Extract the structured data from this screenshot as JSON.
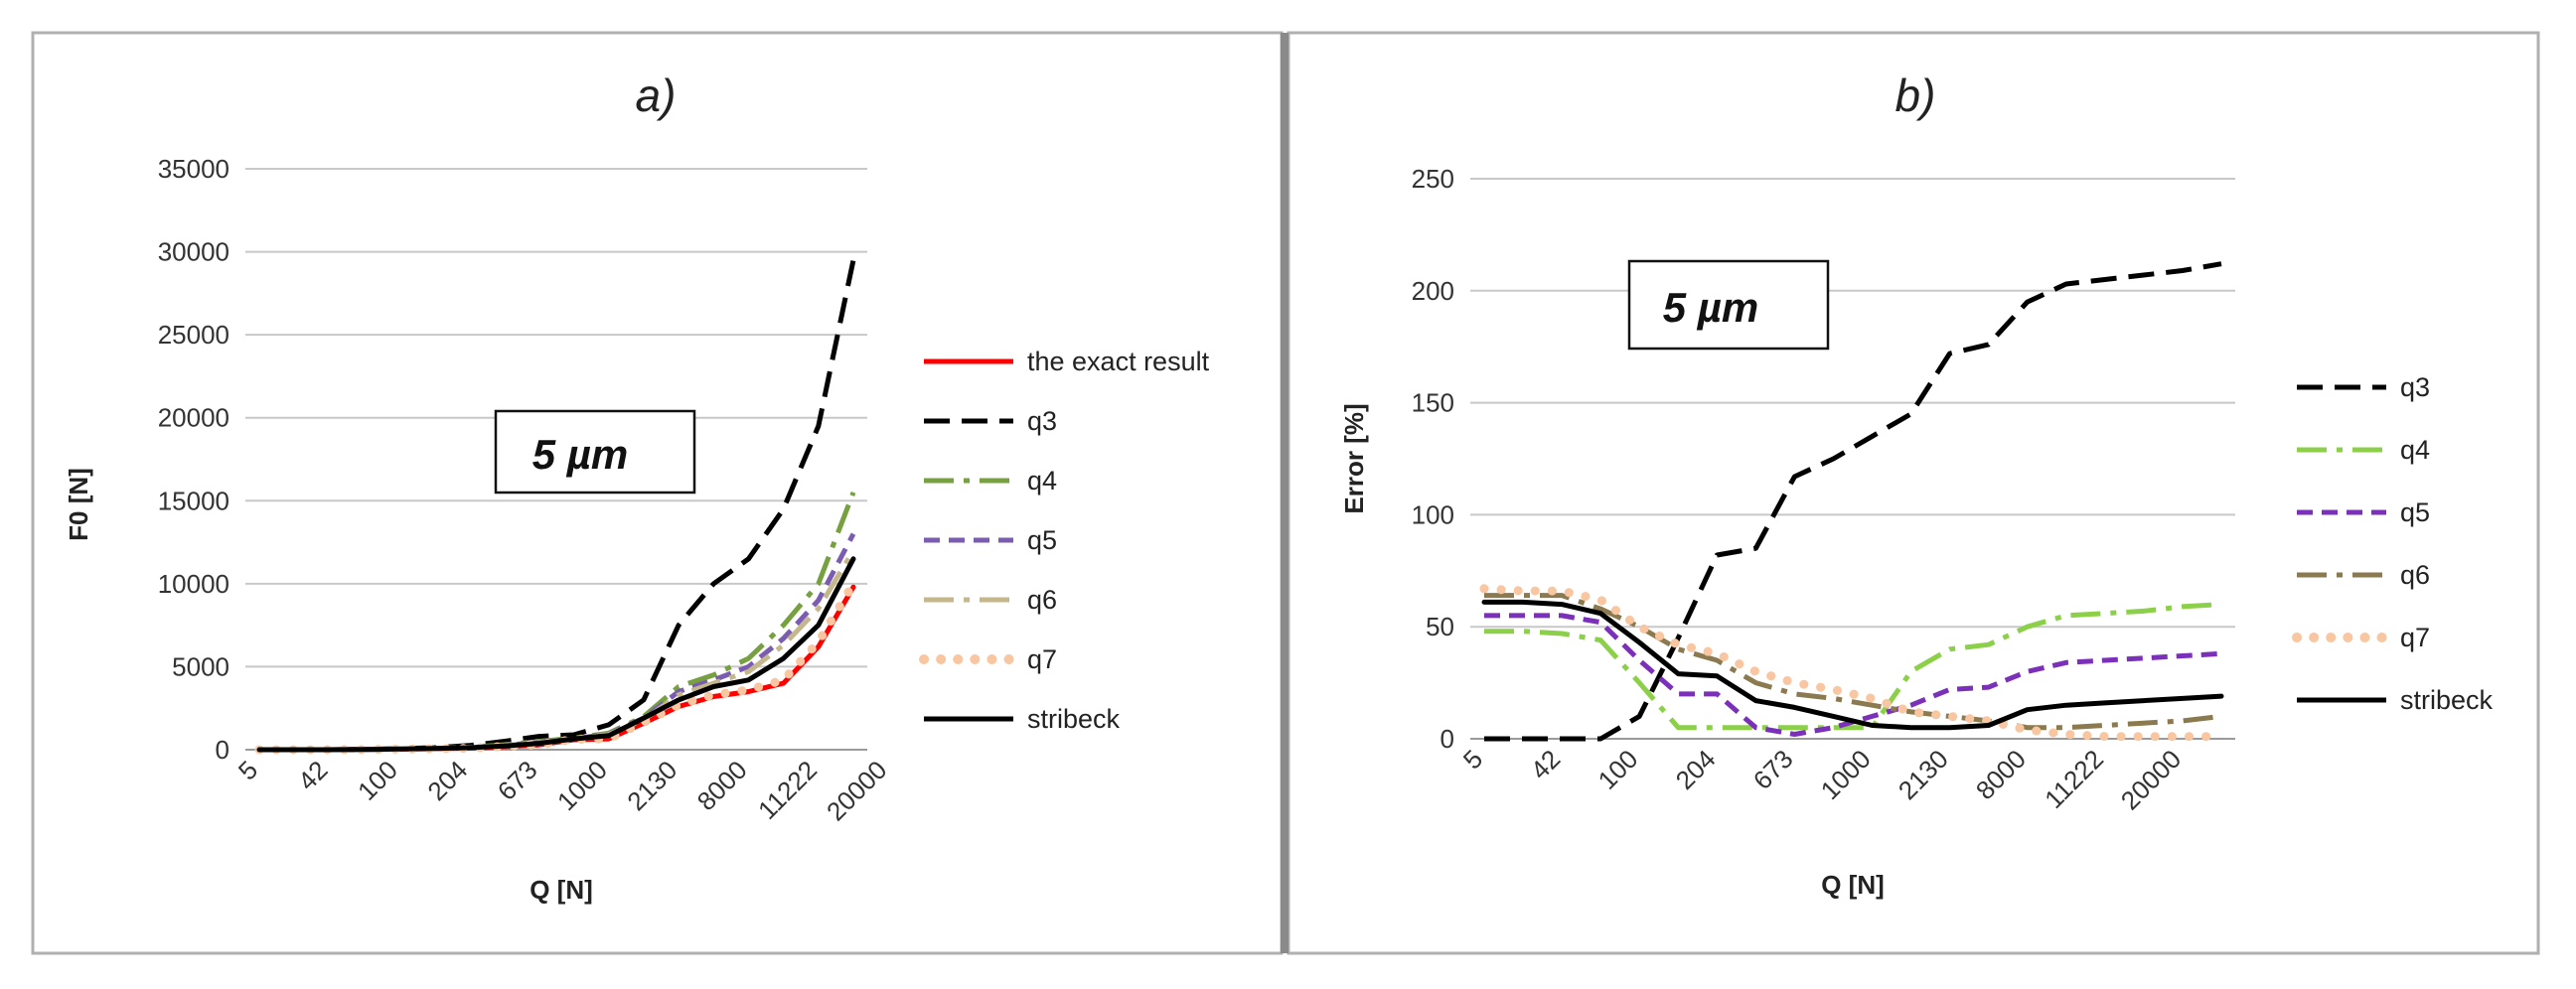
{
  "chart_data": [
    {
      "panel": "a",
      "type": "line",
      "title": "a)",
      "xlabel": "Q [N]",
      "ylabel": "F0 [N]",
      "ylim": [
        0,
        35000
      ],
      "yticks": [
        "0",
        "5000",
        "10000",
        "15000",
        "20000",
        "25000",
        "30000",
        "35000"
      ],
      "grid": true,
      "legend": "right",
      "annotation": "5 µm",
      "x_tick_labels": [
        "5",
        "42",
        "100",
        "204",
        "673",
        "1000",
        "2130",
        "8000",
        "11222",
        "20000"
      ],
      "series": [
        {
          "name": "the exact result",
          "color": "#ff0000",
          "style": "solid",
          "values": [
            0,
            0,
            0,
            10,
            30,
            60,
            90,
            180,
            290,
            600,
            650,
            1600,
            2600,
            3200,
            3500,
            4000,
            6200,
            9800
          ]
        },
        {
          "name": "q3",
          "color": "#000000",
          "style": "dash",
          "values": [
            0,
            0,
            0,
            20,
            60,
            120,
            250,
            500,
            800,
            900,
            1500,
            3000,
            7500,
            10000,
            11500,
            14500,
            19500,
            29500
          ]
        },
        {
          "name": "q4",
          "color": "#77a040",
          "style": "dashdot",
          "values": [
            0,
            0,
            0,
            10,
            40,
            80,
            150,
            300,
            500,
            700,
            1000,
            2000,
            3800,
            4500,
            5500,
            7500,
            10000,
            15500
          ]
        },
        {
          "name": "q5",
          "color": "#7a5cb0",
          "style": "shortdash",
          "values": [
            0,
            0,
            0,
            10,
            40,
            70,
            130,
            260,
            450,
            650,
            950,
            1900,
            3500,
            4200,
            5000,
            6700,
            9000,
            13000
          ]
        },
        {
          "name": "q6",
          "color": "#c4b78c",
          "style": "dashdot",
          "values": [
            0,
            0,
            0,
            10,
            40,
            70,
            120,
            240,
            420,
            620,
            920,
            1800,
            3300,
            4000,
            4700,
            6300,
            8500,
            12000
          ]
        },
        {
          "name": "q7",
          "color": "#f8c6a0",
          "style": "dots",
          "values": [
            0,
            0,
            0,
            10,
            30,
            60,
            90,
            190,
            300,
            620,
            660,
            1650,
            2700,
            3300,
            3600,
            4200,
            6500,
            10000
          ]
        },
        {
          "name": "stribeck",
          "color": "#000000",
          "style": "solid",
          "values": [
            0,
            0,
            0,
            10,
            40,
            70,
            120,
            220,
            380,
            650,
            850,
            1900,
            3000,
            3800,
            4200,
            5500,
            7500,
            11500
          ]
        }
      ]
    },
    {
      "panel": "b",
      "type": "line",
      "title": "b)",
      "xlabel": "Q [N]",
      "ylabel": "Error [%]",
      "ylim": [
        0,
        250
      ],
      "yticks": [
        "0",
        "50",
        "100",
        "150",
        "200",
        "250"
      ],
      "grid": true,
      "legend": "right",
      "annotation": "5 µm",
      "x_tick_labels": [
        "5",
        "42",
        "100",
        "204",
        "673",
        "1000",
        "2130",
        "8000",
        "11222",
        "20000"
      ],
      "series": [
        {
          "name": "q3",
          "color": "#000000",
          "style": "dash",
          "values": [
            0,
            0,
            0,
            0,
            10,
            45,
            82,
            85,
            117,
            125,
            135,
            145,
            172,
            176,
            195,
            203,
            205,
            207,
            209,
            212
          ]
        },
        {
          "name": "q4",
          "color": "#8cd04a",
          "style": "dashdot",
          "values": [
            48,
            48,
            47,
            44,
            25,
            5,
            5,
            5,
            5,
            5,
            5,
            30,
            40,
            42,
            50,
            55,
            56,
            57,
            59,
            60
          ]
        },
        {
          "name": "q5",
          "color": "#7a30b8",
          "style": "shortdash",
          "values": [
            55,
            55,
            55,
            52,
            35,
            20,
            20,
            5,
            2,
            5,
            10,
            15,
            22,
            23,
            30,
            34,
            35,
            36,
            37,
            38
          ]
        },
        {
          "name": "q6",
          "color": "#8b7a50",
          "style": "dashdot",
          "values": [
            64,
            64,
            64,
            58,
            50,
            40,
            35,
            25,
            20,
            18,
            15,
            12,
            10,
            8,
            5,
            5,
            6,
            7,
            8,
            10
          ]
        },
        {
          "name": "q7",
          "color": "#f8c6a0",
          "style": "dots",
          "values": [
            67,
            66,
            66,
            62,
            50,
            42,
            38,
            30,
            25,
            22,
            18,
            12,
            10,
            8,
            4,
            2,
            1,
            1,
            1,
            1
          ]
        },
        {
          "name": "stribeck",
          "color": "#000000",
          "style": "solid",
          "values": [
            61,
            61,
            60,
            56,
            43,
            29,
            28,
            17,
            14,
            10,
            6,
            5,
            5,
            6,
            13,
            15,
            16,
            17,
            18,
            19
          ]
        }
      ]
    }
  ]
}
